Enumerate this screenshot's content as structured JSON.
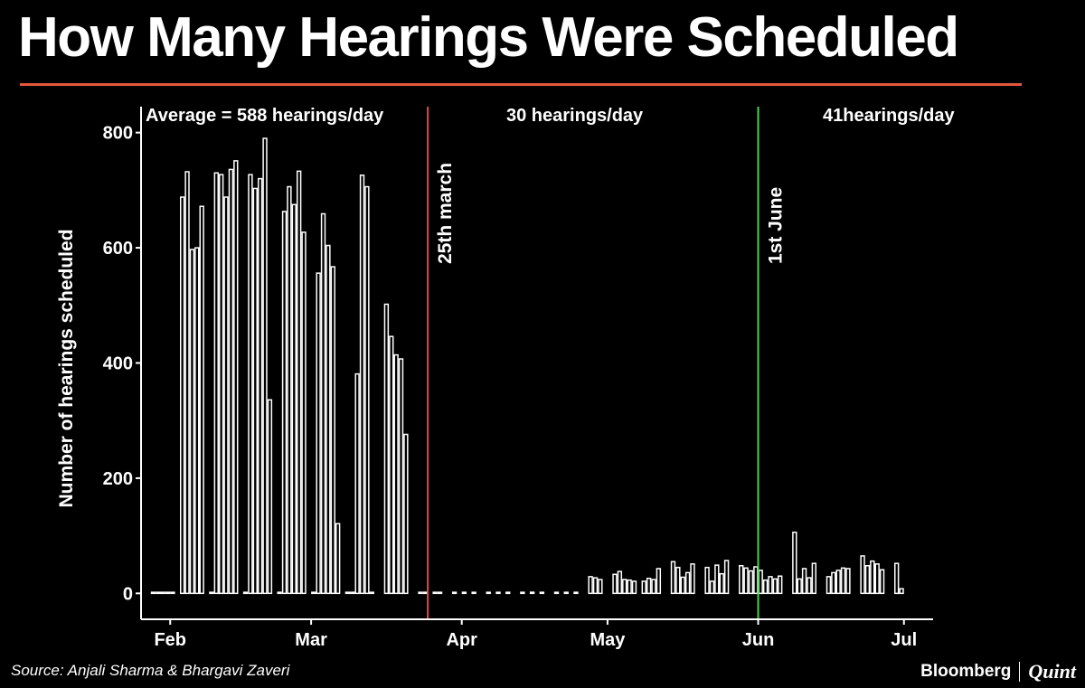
{
  "title": "How Many Hearings Were Scheduled",
  "colors": {
    "background": "#000000",
    "accent_rule": "#e2583a",
    "marker_march": "#e04848",
    "marker_june": "#4cd24c",
    "bars": "#ffffff"
  },
  "footer": {
    "source": "Source: Anjali Sharma & Bhargavi Zaveri",
    "brand_primary": "Bloomberg",
    "brand_secondary": "Quint"
  },
  "chart_data": {
    "type": "bar",
    "ylabel": "Number of hearings scheduled",
    "xlabel": "",
    "xlim": [
      "2020-01-26",
      "2020-07-07"
    ],
    "ylim": [
      -45,
      845
    ],
    "yticks": [
      0,
      200,
      400,
      600,
      800
    ],
    "xticks": [
      {
        "date": "2020-02-01",
        "label": "Feb"
      },
      {
        "date": "2020-03-01",
        "label": "Mar"
      },
      {
        "date": "2020-04-01",
        "label": "Apr"
      },
      {
        "date": "2020-05-01",
        "label": "May"
      },
      {
        "date": "2020-06-01",
        "label": "Jun"
      },
      {
        "date": "2020-07-01",
        "label": "Jul"
      }
    ],
    "grid": false,
    "markers": [
      {
        "date": "2020-03-25",
        "label": "25th march",
        "color": "#e04848"
      },
      {
        "date": "2020-06-01",
        "label": "1st June",
        "color": "#4cd24c"
      }
    ],
    "annotations": [
      {
        "text": "Average = 588 hearings/day",
        "period": "before 25th march"
      },
      {
        "text": "30 hearings/day",
        "period": "25th march to 1st June"
      },
      {
        "text": "41hearings/day",
        "period": "after 1st June"
      }
    ],
    "bars": [
      {
        "date": "2020-01-28",
        "value": 0
      },
      {
        "date": "2020-01-29",
        "value": 0
      },
      {
        "date": "2020-01-30",
        "value": 0
      },
      {
        "date": "2020-01-31",
        "value": 0
      },
      {
        "date": "2020-02-01",
        "value": 0
      },
      {
        "date": "2020-02-03",
        "value": 688
      },
      {
        "date": "2020-02-04",
        "value": 732
      },
      {
        "date": "2020-02-05",
        "value": 597
      },
      {
        "date": "2020-02-06",
        "value": 600
      },
      {
        "date": "2020-02-07",
        "value": 672
      },
      {
        "date": "2020-02-09",
        "value": 0
      },
      {
        "date": "2020-02-10",
        "value": 730
      },
      {
        "date": "2020-02-11",
        "value": 727
      },
      {
        "date": "2020-02-12",
        "value": 688
      },
      {
        "date": "2020-02-13",
        "value": 736
      },
      {
        "date": "2020-02-14",
        "value": 751
      },
      {
        "date": "2020-02-16",
        "value": 0
      },
      {
        "date": "2020-02-17",
        "value": 727
      },
      {
        "date": "2020-02-18",
        "value": 703
      },
      {
        "date": "2020-02-19",
        "value": 720
      },
      {
        "date": "2020-02-20",
        "value": 790
      },
      {
        "date": "2020-02-21",
        "value": 336
      },
      {
        "date": "2020-02-23",
        "value": 0
      },
      {
        "date": "2020-02-24",
        "value": 663
      },
      {
        "date": "2020-02-25",
        "value": 706
      },
      {
        "date": "2020-02-26",
        "value": 675
      },
      {
        "date": "2020-02-27",
        "value": 733
      },
      {
        "date": "2020-02-28",
        "value": 627
      },
      {
        "date": "2020-03-01",
        "value": 0
      },
      {
        "date": "2020-03-02",
        "value": 556
      },
      {
        "date": "2020-03-03",
        "value": 659
      },
      {
        "date": "2020-03-04",
        "value": 604
      },
      {
        "date": "2020-03-05",
        "value": 567
      },
      {
        "date": "2020-03-06",
        "value": 121
      },
      {
        "date": "2020-03-08",
        "value": 0
      },
      {
        "date": "2020-03-09",
        "value": 0
      },
      {
        "date": "2020-03-10",
        "value": 381
      },
      {
        "date": "2020-03-11",
        "value": 726
      },
      {
        "date": "2020-03-12",
        "value": 706
      },
      {
        "date": "2020-03-13",
        "value": 0
      },
      {
        "date": "2020-03-16",
        "value": 502
      },
      {
        "date": "2020-03-17",
        "value": 446
      },
      {
        "date": "2020-03-18",
        "value": 414
      },
      {
        "date": "2020-03-19",
        "value": 407
      },
      {
        "date": "2020-03-20",
        "value": 276
      },
      {
        "date": "2020-03-23",
        "value": 0
      },
      {
        "date": "2020-03-24",
        "value": 0
      },
      {
        "date": "2020-03-26",
        "value": 0
      },
      {
        "date": "2020-03-27",
        "value": 0
      },
      {
        "date": "2020-03-30",
        "value": 0
      },
      {
        "date": "2020-04-01",
        "value": 0
      },
      {
        "date": "2020-04-03",
        "value": 0
      },
      {
        "date": "2020-04-06",
        "value": 0
      },
      {
        "date": "2020-04-08",
        "value": 0
      },
      {
        "date": "2020-04-10",
        "value": 0
      },
      {
        "date": "2020-04-13",
        "value": 0
      },
      {
        "date": "2020-04-15",
        "value": 2
      },
      {
        "date": "2020-04-17",
        "value": 0
      },
      {
        "date": "2020-04-20",
        "value": 0
      },
      {
        "date": "2020-04-22",
        "value": 0
      },
      {
        "date": "2020-04-24",
        "value": 0
      },
      {
        "date": "2020-04-27",
        "value": 29
      },
      {
        "date": "2020-04-28",
        "value": 27
      },
      {
        "date": "2020-04-29",
        "value": 24
      },
      {
        "date": "2020-05-02",
        "value": 33
      },
      {
        "date": "2020-05-03",
        "value": 38
      },
      {
        "date": "2020-05-04",
        "value": 24
      },
      {
        "date": "2020-05-05",
        "value": 23
      },
      {
        "date": "2020-05-06",
        "value": 21
      },
      {
        "date": "2020-05-08",
        "value": 21
      },
      {
        "date": "2020-05-09",
        "value": 26
      },
      {
        "date": "2020-05-10",
        "value": 24
      },
      {
        "date": "2020-05-11",
        "value": 43
      },
      {
        "date": "2020-05-14",
        "value": 55
      },
      {
        "date": "2020-05-15",
        "value": 45
      },
      {
        "date": "2020-05-16",
        "value": 28
      },
      {
        "date": "2020-05-17",
        "value": 36
      },
      {
        "date": "2020-05-18",
        "value": 51
      },
      {
        "date": "2020-05-21",
        "value": 45
      },
      {
        "date": "2020-05-22",
        "value": 21
      },
      {
        "date": "2020-05-23",
        "value": 49
      },
      {
        "date": "2020-05-24",
        "value": 34
      },
      {
        "date": "2020-05-25",
        "value": 57
      },
      {
        "date": "2020-05-28",
        "value": 48
      },
      {
        "date": "2020-05-29",
        "value": 44
      },
      {
        "date": "2020-05-30",
        "value": 39
      },
      {
        "date": "2020-05-31",
        "value": 46
      },
      {
        "date": "2020-06-01",
        "value": 40
      },
      {
        "date": "2020-06-02",
        "value": 23
      },
      {
        "date": "2020-06-03",
        "value": 29
      },
      {
        "date": "2020-06-04",
        "value": 25
      },
      {
        "date": "2020-06-05",
        "value": 30
      },
      {
        "date": "2020-06-08",
        "value": 106
      },
      {
        "date": "2020-06-09",
        "value": 25
      },
      {
        "date": "2020-06-10",
        "value": 43
      },
      {
        "date": "2020-06-11",
        "value": 27
      },
      {
        "date": "2020-06-12",
        "value": 52
      },
      {
        "date": "2020-06-15",
        "value": 29
      },
      {
        "date": "2020-06-16",
        "value": 36
      },
      {
        "date": "2020-06-17",
        "value": 40
      },
      {
        "date": "2020-06-18",
        "value": 44
      },
      {
        "date": "2020-06-19",
        "value": 43
      },
      {
        "date": "2020-06-22",
        "value": 65
      },
      {
        "date": "2020-06-23",
        "value": 48
      },
      {
        "date": "2020-06-24",
        "value": 56
      },
      {
        "date": "2020-06-25",
        "value": 51
      },
      {
        "date": "2020-06-26",
        "value": 41
      },
      {
        "date": "2020-06-29",
        "value": 52
      },
      {
        "date": "2020-06-30",
        "value": 8
      }
    ]
  }
}
